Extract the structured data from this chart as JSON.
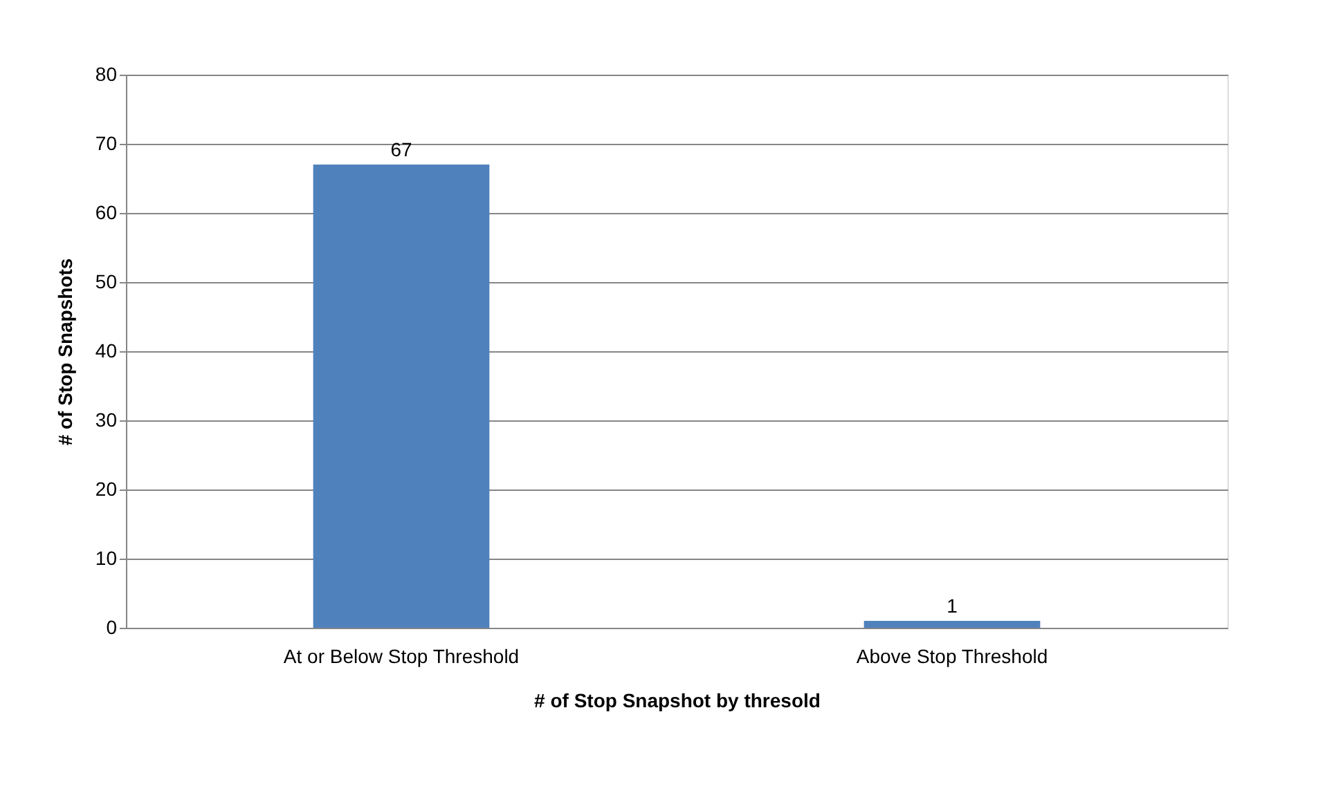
{
  "chart_data": {
    "type": "bar",
    "categories": [
      "At or Below Stop Threshold",
      "Above Stop Threshold"
    ],
    "values": [
      67,
      1
    ],
    "color": "#4f81bd",
    "xlabel": "# of Stop Snapshot by thresold",
    "ylabel": "# of Stop Snapshots",
    "ylim": [
      0,
      80
    ],
    "yticks": [
      0,
      10,
      20,
      30,
      40,
      50,
      60,
      70,
      80
    ],
    "grid": "y",
    "data_labels": true
  }
}
